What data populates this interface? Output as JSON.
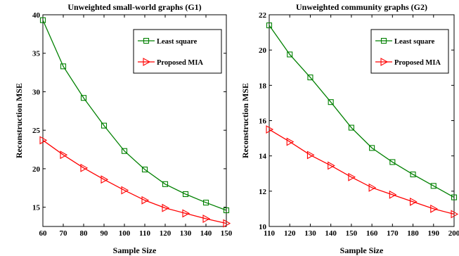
{
  "chart_data": [
    {
      "type": "line",
      "title": "Unweighted small-world graphs (G1)",
      "xlabel": "Sample Size",
      "ylabel": "Reconstruction MSE",
      "xlim": [
        60,
        150
      ],
      "ylim": [
        12.5,
        40
      ],
      "xticks": [
        60,
        70,
        80,
        90,
        100,
        110,
        120,
        130,
        140,
        150
      ],
      "yticks": [
        15,
        20,
        25,
        30,
        35,
        40
      ],
      "grid": false,
      "legend_position": "top-right",
      "x": [
        60,
        70,
        80,
        90,
        100,
        110,
        120,
        130,
        140,
        150
      ],
      "series": [
        {
          "name": "Least square",
          "color": "#008000",
          "marker": "square",
          "values": [
            39.3,
            33.3,
            29.2,
            25.6,
            22.3,
            19.9,
            18.0,
            16.7,
            15.6,
            14.6
          ]
        },
        {
          "name": "Proposed MIA",
          "color": "#ff0000",
          "marker": "triangle-right",
          "values": [
            23.7,
            21.8,
            20.1,
            18.6,
            17.2,
            15.9,
            14.9,
            14.2,
            13.5,
            12.9
          ]
        }
      ]
    },
    {
      "type": "line",
      "title": "Unweighted community graphs (G2)",
      "xlabel": "Sample Size",
      "ylabel": "Reconstruction MSE",
      "xlim": [
        110,
        200
      ],
      "ylim": [
        10,
        22
      ],
      "xticks": [
        110,
        120,
        130,
        140,
        150,
        160,
        170,
        180,
        190,
        200
      ],
      "yticks": [
        10,
        12,
        14,
        16,
        18,
        20,
        22
      ],
      "grid": false,
      "legend_position": "top-right",
      "x": [
        110,
        120,
        130,
        140,
        150,
        160,
        170,
        180,
        190,
        200
      ],
      "series": [
        {
          "name": "Least square",
          "color": "#008000",
          "marker": "square",
          "values": [
            21.4,
            19.75,
            18.45,
            17.05,
            15.6,
            14.45,
            13.65,
            12.95,
            12.3,
            11.65
          ]
        },
        {
          "name": "Proposed MIA",
          "color": "#ff0000",
          "marker": "triangle-right",
          "values": [
            15.5,
            14.8,
            14.05,
            13.45,
            12.8,
            12.2,
            11.8,
            11.4,
            11.0,
            10.7
          ]
        }
      ]
    }
  ]
}
